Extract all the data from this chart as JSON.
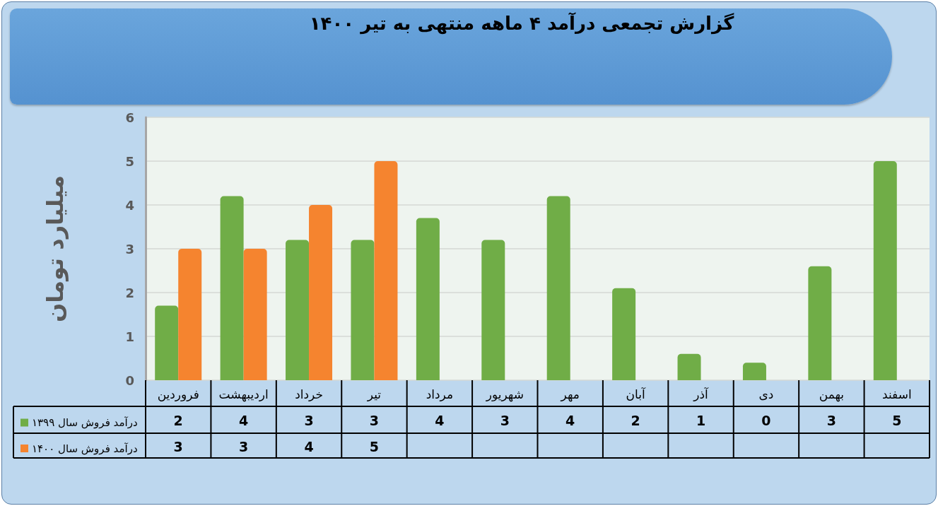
{
  "chart_data": {
    "type": "bar",
    "title": "گزارش تجمعی درآمد ۴ ماهه منتهی به تیر ۱۴۰۰",
    "ylabel": "میلیارد تومان",
    "categories": [
      "فروردین",
      "اردیبهشت",
      "خرداد",
      "تیر",
      "مرداد",
      "شهریور",
      "مهر",
      "آبان",
      "آذر",
      "دی",
      "بهمن",
      "اسفند"
    ],
    "series": [
      {
        "name": "درآمد فروش سال ۱۳۹۹",
        "color": "#70ad47",
        "values": [
          1.7,
          4.2,
          3.2,
          3.2,
          3.7,
          3.2,
          4.2,
          2.1,
          0.6,
          0.4,
          2.6,
          5.0
        ],
        "value_labels": [
          "2",
          "4",
          "3",
          "3",
          "4",
          "3",
          "4",
          "2",
          "1",
          "0",
          "3",
          "5"
        ]
      },
      {
        "name": "درآمد فروش سال ۱۴۰۰",
        "color": "#f5842f",
        "values": [
          3,
          3,
          4,
          5,
          null,
          null,
          null,
          null,
          null,
          null,
          null,
          null
        ],
        "value_labels": [
          "3",
          "3",
          "4",
          "5",
          null,
          null,
          null,
          null,
          null,
          null,
          null,
          null
        ]
      }
    ],
    "ylim": [
      0,
      6
    ],
    "yticks": [
      0,
      1,
      2,
      3,
      4,
      5,
      6
    ],
    "grid": "y",
    "legend": "bottom left"
  }
}
